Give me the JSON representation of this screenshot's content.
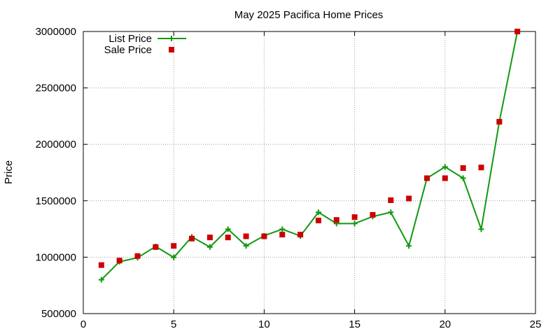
{
  "chart_data": {
    "type": "line",
    "title": "May 2025 Pacifica Home Prices",
    "xlabel": "",
    "ylabel": "Price",
    "xlim": [
      0,
      25
    ],
    "ylim": [
      500000,
      3000000
    ],
    "xticks": [
      "0",
      "5",
      "10",
      "15",
      "20",
      "25"
    ],
    "yticks": [
      "500000",
      "1000000",
      "1500000",
      "2000000",
      "2500000",
      "3000000"
    ],
    "grid": true,
    "legend_position": "top-left",
    "series": [
      {
        "name": "List Price",
        "style": "linespoints",
        "marker": "plus",
        "color": "#119911",
        "x": [
          1,
          2,
          3,
          4,
          5,
          6,
          7,
          8,
          9,
          10,
          11,
          12,
          13,
          14,
          15,
          16,
          17,
          18,
          19,
          20,
          21,
          22,
          23,
          24
        ],
        "y": [
          800000,
          960000,
          995000,
          1095000,
          998000,
          1180000,
          1090000,
          1248000,
          1100000,
          1190000,
          1248000,
          1188000,
          1398000,
          1298000,
          1298000,
          1360000,
          1398000,
          1100000,
          1700000,
          1800000,
          1700000,
          1248000,
          2200000,
          3000000
        ]
      },
      {
        "name": "Sale Price",
        "style": "points",
        "marker": "square",
        "color": "#cc0000",
        "x": [
          1,
          2,
          3,
          4,
          5,
          6,
          7,
          8,
          9,
          10,
          11,
          12,
          13,
          14,
          15,
          16,
          17,
          18,
          19,
          20,
          21,
          22,
          23,
          24
        ],
        "y": [
          930000,
          970000,
          1010000,
          1090000,
          1100000,
          1165000,
          1175000,
          1175000,
          1185000,
          1185000,
          1200000,
          1200000,
          1325000,
          1330000,
          1355000,
          1375000,
          1505000,
          1520000,
          1700000,
          1700000,
          1790000,
          1795000,
          2200000,
          3000000
        ]
      }
    ]
  }
}
